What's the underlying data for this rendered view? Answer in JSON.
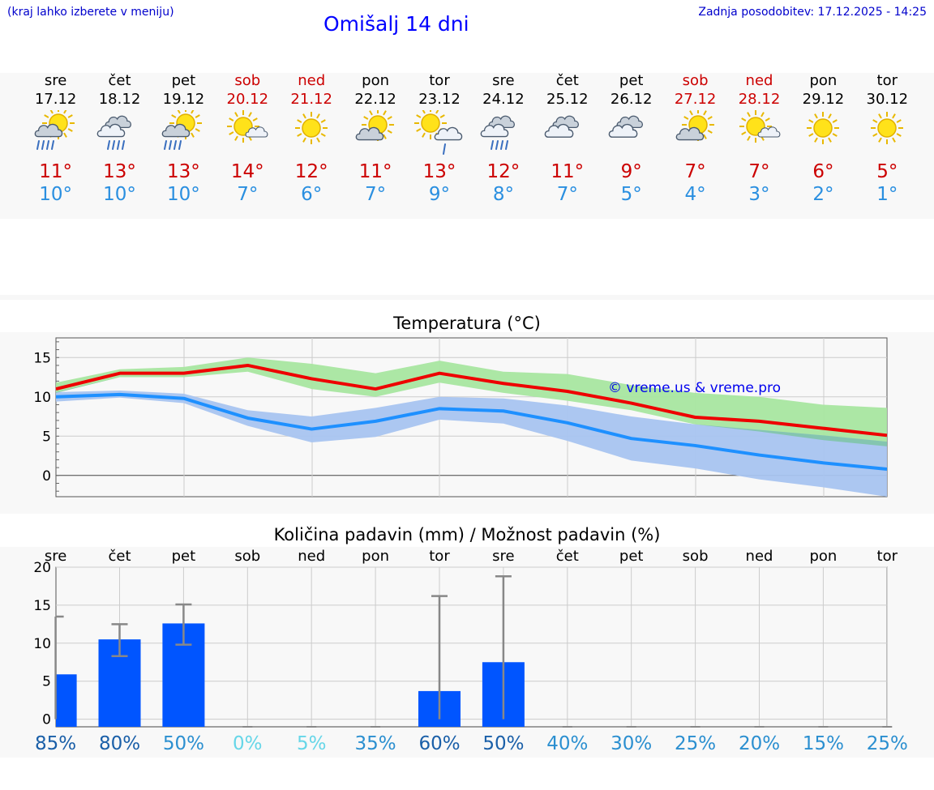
{
  "header": {
    "menu_hint": "(kraj lahko izberete v meniju)",
    "title": "Omišalj 14 dni",
    "updated": "Zadnja posodobitev: 17.12.2025 - 14:25"
  },
  "days": [
    {
      "name": "sre",
      "date": "17.12",
      "weekend": false,
      "icon": "sun-cloud-rain-icon",
      "tmax": "11°",
      "tmin": "10°",
      "precip_pct": "85%"
    },
    {
      "name": "čet",
      "date": "18.12",
      "weekend": false,
      "icon": "cloud-rain-icon",
      "tmax": "13°",
      "tmin": "10°",
      "precip_pct": "80%"
    },
    {
      "name": "pet",
      "date": "19.12",
      "weekend": false,
      "icon": "sun-cloud-rain-icon",
      "tmax": "13°",
      "tmin": "10°",
      "precip_pct": "50%"
    },
    {
      "name": "sob",
      "date": "20.12",
      "weekend": true,
      "icon": "sun-small-cloud-icon",
      "tmax": "14°",
      "tmin": "7°",
      "precip_pct": "0%"
    },
    {
      "name": "ned",
      "date": "21.12",
      "weekend": true,
      "icon": "sun-icon",
      "tmax": "12°",
      "tmin": "6°",
      "precip_pct": "5%"
    },
    {
      "name": "pon",
      "date": "22.12",
      "weekend": false,
      "icon": "sun-cloud-icon",
      "tmax": "11°",
      "tmin": "7°",
      "precip_pct": "35%"
    },
    {
      "name": "tor",
      "date": "23.12",
      "weekend": false,
      "icon": "sun-cloud-light-rain-icon",
      "tmax": "13°",
      "tmin": "9°",
      "precip_pct": "60%"
    },
    {
      "name": "sre",
      "date": "24.12",
      "weekend": false,
      "icon": "cloud-rain-icon",
      "tmax": "12°",
      "tmin": "8°",
      "precip_pct": "50%"
    },
    {
      "name": "čet",
      "date": "25.12",
      "weekend": false,
      "icon": "cloud-icon",
      "tmax": "11°",
      "tmin": "7°",
      "precip_pct": "40%"
    },
    {
      "name": "pet",
      "date": "26.12",
      "weekend": false,
      "icon": "cloud-icon",
      "tmax": "9°",
      "tmin": "5°",
      "precip_pct": "30%"
    },
    {
      "name": "sob",
      "date": "27.12",
      "weekend": true,
      "icon": "sun-cloud-icon",
      "tmax": "7°",
      "tmin": "4°",
      "precip_pct": "25%"
    },
    {
      "name": "ned",
      "date": "28.12",
      "weekend": true,
      "icon": "sun-small-cloud-icon",
      "tmax": "7°",
      "tmin": "3°",
      "precip_pct": "20%"
    },
    {
      "name": "pon",
      "date": "29.12",
      "weekend": false,
      "icon": "sun-icon",
      "tmax": "6°",
      "tmin": "2°",
      "precip_pct": "15%"
    },
    {
      "name": "tor",
      "date": "30.12",
      "weekend": false,
      "icon": "sun-icon",
      "tmax": "5°",
      "tmin": "1°",
      "precip_pct": "25%"
    }
  ],
  "colors": {
    "max_line": "#ee0000",
    "min_line": "#1e90ff",
    "max_band": "#a8e6a0",
    "min_band": "#a8c4f0",
    "overlap_band": "#7fc4a8",
    "bar": "#0055ff",
    "errbar": "#888888",
    "weekend": "#cc0000"
  },
  "chart_data": [
    {
      "type": "line",
      "title": "Temperatura (°C)",
      "watermark": "© vreme.us & vreme.pro",
      "x": [
        0,
        1,
        2,
        3,
        4,
        5,
        6,
        7,
        8,
        9,
        10,
        11,
        12,
        13
      ],
      "ylim": [
        -2.7,
        17.5
      ],
      "yticks": [
        "0",
        "5",
        "10",
        "15"
      ],
      "ytick_values": [
        0,
        5,
        10,
        15
      ],
      "series": [
        {
          "name": "max",
          "values": [
            11,
            13,
            13,
            14,
            12.3,
            11,
            13,
            11.7,
            10.7,
            9.2,
            7.4,
            6.9,
            6,
            5.1
          ],
          "band_low": [
            10.5,
            12.5,
            12.5,
            13.2,
            11,
            10,
            11.8,
            10.5,
            9.5,
            8.3,
            6.5,
            5.6,
            4.5,
            3.7
          ],
          "band_high": [
            11.8,
            13.5,
            13.8,
            15,
            14.2,
            13,
            14.6,
            13.2,
            12.9,
            11.5,
            10.5,
            10,
            9,
            8.6
          ]
        },
        {
          "name": "min",
          "values": [
            10,
            10.3,
            9.8,
            7.3,
            5.9,
            6.9,
            8.5,
            8.2,
            6.7,
            4.7,
            3.8,
            2.6,
            1.6,
            0.8
          ],
          "band_low": [
            9.4,
            9.9,
            9.2,
            6.3,
            4.2,
            4.9,
            7.1,
            6.6,
            4.4,
            1.9,
            0.9,
            -0.5,
            -1.5,
            -2.7
          ],
          "band_high": [
            10.6,
            10.8,
            10.4,
            8.3,
            7.5,
            8.6,
            10,
            9.8,
            8.9,
            7.5,
            6.5,
            5.8,
            5.1,
            4.3
          ]
        }
      ]
    },
    {
      "type": "bar",
      "title": "Količina padavin (mm) / Možnost padavin (%)",
      "categories": [
        "sre",
        "čet",
        "pet",
        "sob",
        "ned",
        "pon",
        "tor",
        "sre",
        "čet",
        "pet",
        "sob",
        "ned",
        "pon",
        "tor"
      ],
      "values": [
        5.9,
        10.5,
        12.6,
        0,
        0,
        0,
        3.7,
        7.5,
        0,
        0,
        0,
        0,
        0,
        0
      ],
      "err_low": [
        0,
        8.3,
        9.8,
        0,
        0,
        0,
        0,
        0,
        0,
        0,
        0,
        0,
        0,
        0
      ],
      "err_high": [
        13.5,
        12.5,
        15.1,
        0,
        0,
        0,
        16.2,
        18.8,
        0,
        0,
        0,
        0,
        0,
        0
      ],
      "ylim": [
        -1,
        20
      ],
      "yticks": [
        "0",
        "5",
        "10",
        "15",
        "20"
      ],
      "ytick_values": [
        0,
        5,
        10,
        15,
        20
      ],
      "pct_colors": [
        "#1a5fa8",
        "#1a5fa8",
        "#2b8fd0",
        "#66d6e8",
        "#66d6e8",
        "#2b8fd0",
        "#1a5fa8",
        "#1a5fa8",
        "#2b8fd0",
        "#2b8fd0",
        "#2b8fd0",
        "#2b8fd0",
        "#2b8fd0",
        "#2b8fd0"
      ]
    }
  ]
}
